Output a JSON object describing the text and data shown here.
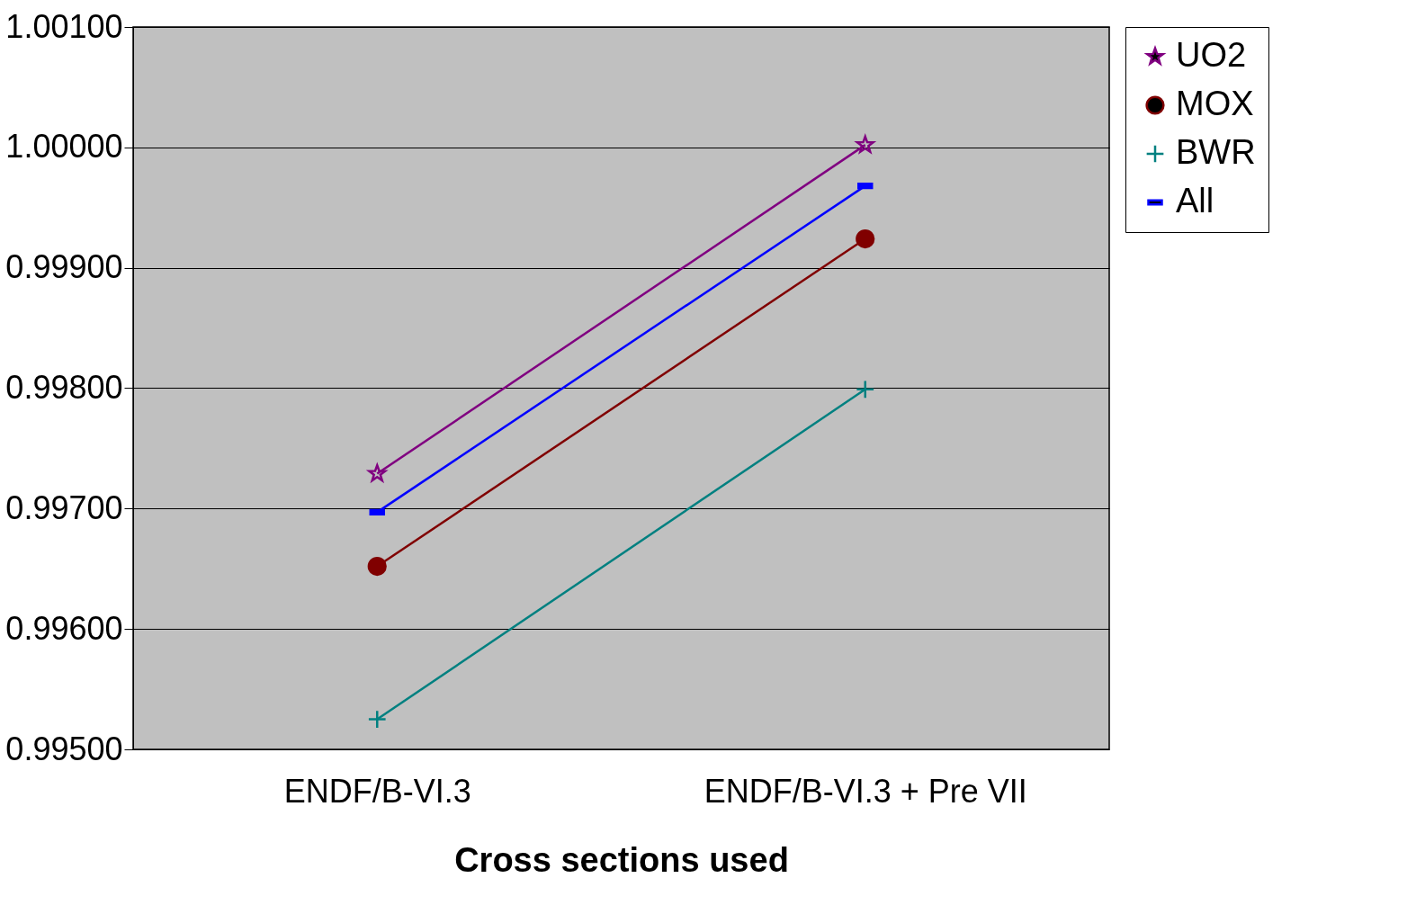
{
  "chart_data": {
    "type": "line",
    "xlabel": "Cross sections used",
    "categories": [
      "ENDF/B-VI.3",
      "ENDF/B-VI.3 + Pre VII"
    ],
    "series": [
      {
        "name": "UO2",
        "color": "#800080",
        "marker": "star",
        "values": [
          0.99729,
          1.00002
        ]
      },
      {
        "name": "MOX",
        "color": "#800000",
        "marker": "circle",
        "values": [
          0.99652,
          0.99924
        ]
      },
      {
        "name": "BWR",
        "color": "#008080",
        "marker": "cross",
        "values": [
          0.99525,
          0.99799
        ]
      },
      {
        "name": "All",
        "color": "#0000ff",
        "marker": "square",
        "values": [
          0.99697,
          0.99968
        ]
      }
    ],
    "ylim": [
      0.995,
      1.001
    ],
    "yticks": [
      {
        "value": 0.995,
        "label": "0.99500"
      },
      {
        "value": 0.996,
        "label": "0.99600"
      },
      {
        "value": 0.997,
        "label": "0.99700"
      },
      {
        "value": 0.998,
        "label": "0.99800"
      },
      {
        "value": 0.999,
        "label": "0.99900"
      },
      {
        "value": 1.0,
        "label": "1.00000"
      },
      {
        "value": 1.001,
        "label": "1.00100"
      }
    ],
    "grid": "y",
    "legend": "right"
  }
}
